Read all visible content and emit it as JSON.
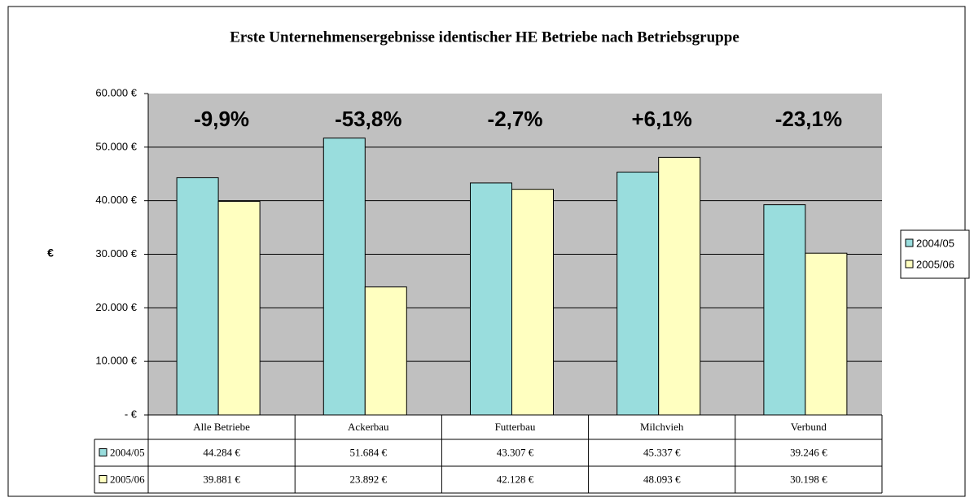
{
  "chart_data": {
    "type": "bar",
    "title": "Erste Unternehmensergebnisse identischer HE Betriebe nach Betriebsgruppe",
    "y_label": "€",
    "categories": [
      "Alle Betriebe",
      "Ackerbau",
      "Futterbau",
      "Milchvieh",
      "Verbund"
    ],
    "annotations": [
      "-9,9%",
      "-53,8%",
      "-2,7%",
      "+6,1%",
      "-23,1%"
    ],
    "series": [
      {
        "name": "2004/05",
        "color": "#99dddd",
        "values": [
          44284,
          51684,
          43307,
          45337,
          39246
        ],
        "value_labels": [
          "44.284 €",
          "51.684 €",
          "43.307 €",
          "45.337 €",
          "39.246 €"
        ]
      },
      {
        "name": "2005/06",
        "color": "#ffffc0",
        "values": [
          39881,
          23892,
          42128,
          48093,
          30198
        ],
        "value_labels": [
          "39.881 €",
          "23.892 €",
          "42.128 €",
          "48.093 €",
          "30.198 €"
        ]
      }
    ],
    "ylim": [
      0,
      60000
    ],
    "yticks": [
      {
        "value": 0,
        "label": "-   €"
      },
      {
        "value": 10000,
        "label": "10.000 €"
      },
      {
        "value": 20000,
        "label": "20.000 €"
      },
      {
        "value": 30000,
        "label": "30.000 €"
      },
      {
        "value": 40000,
        "label": "40.000 €"
      },
      {
        "value": 50000,
        "label": "50.000 €"
      },
      {
        "value": 60000,
        "label": "60.000 €"
      }
    ],
    "grid": true,
    "legend": "right"
  }
}
